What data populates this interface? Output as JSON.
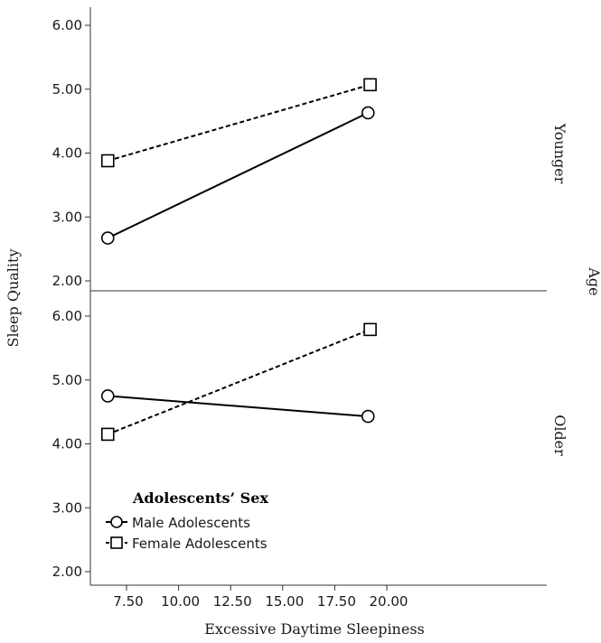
{
  "chart_data": {
    "type": "line",
    "xlabel": "Excessive Daytime Sleepiness",
    "ylabel": "Sleep Quality",
    "facet_label": "Age",
    "xlim": [
      6.0,
      21.0
    ],
    "ylim": [
      1.85,
      6.15
    ],
    "x_ticks": [
      7.5,
      10.0,
      12.5,
      15.0,
      17.5,
      20.0
    ],
    "x_tick_labels": [
      "7.50",
      "10.00",
      "12.50",
      "15.00",
      "17.50",
      "20.00"
    ],
    "y_ticks": [
      2,
      3,
      4,
      5,
      6
    ],
    "y_tick_labels": [
      "2.00",
      "3.00",
      "4.00",
      "5.00",
      "6.00"
    ],
    "grid": false,
    "legend": {
      "title": "Adolescents’ Sex",
      "placement": "bottom-left of lower panel",
      "entries": [
        "Male Adolescents",
        "Female Adolescents"
      ]
    },
    "panels": [
      {
        "label": "Younger",
        "series": [
          {
            "name": "Male Adolescents",
            "marker": "circle",
            "line": "solid",
            "x": [
              6.6,
              19.1
            ],
            "y": [
              2.67,
              4.63
            ]
          },
          {
            "name": "Female Adolescents",
            "marker": "square",
            "line": "dashed",
            "x": [
              6.6,
              19.2
            ],
            "y": [
              3.88,
              5.07
            ]
          }
        ]
      },
      {
        "label": "Older",
        "series": [
          {
            "name": "Male Adolescents",
            "marker": "circle",
            "line": "solid",
            "x": [
              6.6,
              19.1
            ],
            "y": [
              4.75,
              4.43
            ]
          },
          {
            "name": "Female Adolescents",
            "marker": "square",
            "line": "dashed",
            "x": [
              6.6,
              19.2
            ],
            "y": [
              4.15,
              5.79
            ]
          }
        ]
      }
    ]
  },
  "colors": {
    "line": "#000000",
    "marker_fill": "#ffffff",
    "axis": "#333333"
  }
}
